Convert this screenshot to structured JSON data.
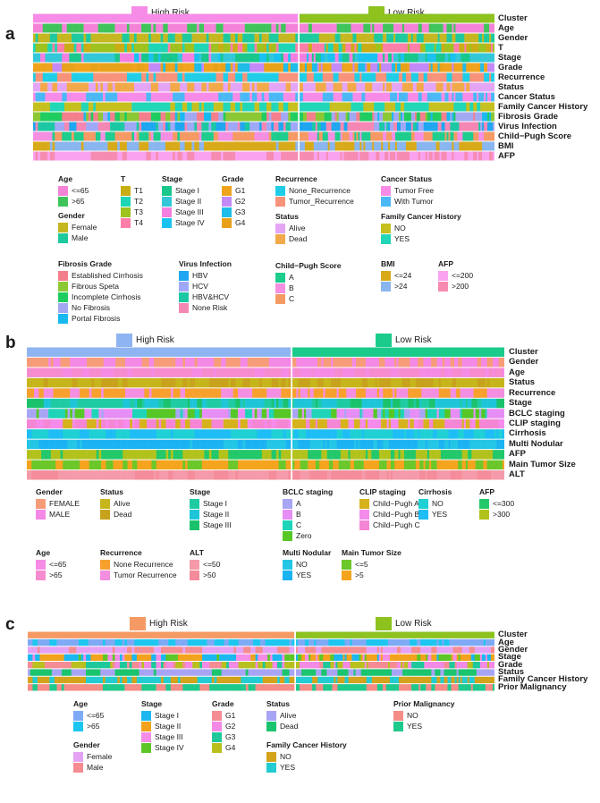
{
  "panels": [
    {
      "letter": "a",
      "headers": [
        {
          "label": "High Risk",
          "color": "#F78CE8"
        },
        {
          "label": "Low Risk",
          "color": "#8DC21F"
        }
      ],
      "tracks": [
        {
          "label": "Cluster",
          "palette": [
            "#F78CE8",
            "#8DC21F"
          ],
          "cluster": true
        },
        {
          "label": "Age",
          "palette": [
            "#F483D8",
            "#3FC45B"
          ]
        },
        {
          "label": "Gender",
          "palette": [
            "#C5B721",
            "#1FC99E"
          ]
        },
        {
          "label": "T",
          "palette": [
            "#C9AD14",
            "#1ED6B5",
            "#9EC21E",
            "#FF7FA8"
          ]
        },
        {
          "label": "Stage",
          "palette": [
            "#19C78C",
            "#33C7D9",
            "#F47FE0",
            "#19C2F0"
          ]
        },
        {
          "label": "Grade",
          "palette": [
            "#F0A41E",
            "#C38AF7",
            "#1EBCE8",
            "#E8A21A"
          ]
        },
        {
          "label": "Recurrence",
          "palette": [
            "#20CDE6",
            "#F7937A"
          ]
        },
        {
          "label": "Status",
          "palette": [
            "#E4A5F5",
            "#F2A94A"
          ]
        },
        {
          "label": "Cancer Status",
          "palette": [
            "#F78CE8",
            "#4BB8F5"
          ]
        },
        {
          "label": "Family Cancer History",
          "palette": [
            "#C6C01F",
            "#22D6B8"
          ]
        },
        {
          "label": "Fibrosis Grade",
          "palette": [
            "#F47F8C",
            "#8BC834",
            "#1FCC60",
            "#A2A9F2",
            "#17B9F0"
          ]
        },
        {
          "label": "Virus Infection",
          "palette": [
            "#1FA6F0",
            "#9FA8F7",
            "#1CC8A4",
            "#F587B4"
          ]
        },
        {
          "label": "Child−Pugh Score",
          "palette": [
            "#1ECD8E",
            "#F48FE2",
            "#F59A64"
          ]
        },
        {
          "label": "BMI",
          "palette": [
            "#D8AA1A",
            "#8AB6F0"
          ]
        },
        {
          "label": "AFP",
          "palette": [
            "#F9A3EF",
            "#F68CB2"
          ]
        }
      ],
      "legend": [
        {
          "title": "Age",
          "items": [
            {
              "label": "<=65",
              "color": "#F483D8"
            },
            {
              "label": ">65",
              "color": "#3FC45B"
            }
          ]
        },
        {
          "title": "Gender",
          "items": [
            {
              "label": "Female",
              "color": "#C5B721"
            },
            {
              "label": "Male",
              "color": "#1FC99E"
            }
          ]
        },
        {
          "title": "T",
          "items": [
            {
              "label": "T1",
              "color": "#C9AD14"
            },
            {
              "label": "T2",
              "color": "#1ED6B5"
            },
            {
              "label": "T3",
              "color": "#9EC21E"
            },
            {
              "label": "T4",
              "color": "#FF7FA8"
            }
          ]
        },
        {
          "title": "Stage",
          "items": [
            {
              "label": "Stage I",
              "color": "#19C78C"
            },
            {
              "label": "Stage II",
              "color": "#33C7D9"
            },
            {
              "label": "Stage III",
              "color": "#F47FE0"
            },
            {
              "label": "Stage IV",
              "color": "#19C2F0"
            }
          ]
        },
        {
          "title": "Grade",
          "items": [
            {
              "label": "G1",
              "color": "#F0A41E"
            },
            {
              "label": "G2",
              "color": "#C38AF7"
            },
            {
              "label": "G3",
              "color": "#1EBCE8"
            },
            {
              "label": "G4",
              "color": "#E8A21A"
            }
          ]
        },
        {
          "title": "Recurrence",
          "items": [
            {
              "label": "None_Recurrence",
              "color": "#20CDE6"
            },
            {
              "label": "Tumor_Recurrence",
              "color": "#F7937A"
            }
          ]
        },
        {
          "title": "Status",
          "items": [
            {
              "label": "Alive",
              "color": "#E4A5F5"
            },
            {
              "label": "Dead",
              "color": "#F2A94A"
            }
          ]
        },
        {
          "title": "Cancer Status",
          "items": [
            {
              "label": "Tumor Free",
              "color": "#F78CE8"
            },
            {
              "label": "With Tumor",
              "color": "#4BB8F5"
            }
          ]
        },
        {
          "title": "Family Cancer History",
          "items": [
            {
              "label": "NO",
              "color": "#C6C01F"
            },
            {
              "label": "YES",
              "color": "#22D6B8"
            }
          ]
        },
        {
          "title": "Fibrosis Grade",
          "items": [
            {
              "label": "Established Cirrhosis",
              "color": "#F47F8C"
            },
            {
              "label": "Fibrous Speta",
              "color": "#8BC834"
            },
            {
              "label": "Incomplete Cirrhosis",
              "color": "#1FCC60"
            },
            {
              "label": "No Fibrosis",
              "color": "#A2A9F2"
            },
            {
              "label": "Portal Fibrosis",
              "color": "#17B9F0"
            }
          ]
        },
        {
          "title": "Virus Infection",
          "items": [
            {
              "label": "HBV",
              "color": "#1FA6F0"
            },
            {
              "label": "HCV",
              "color": "#9FA8F7"
            },
            {
              "label": "HBV&HCV",
              "color": "#1CC8A4"
            },
            {
              "label": "None Risk",
              "color": "#F587B4"
            }
          ]
        },
        {
          "title": "Child−Pugh Score",
          "items": [
            {
              "label": "A",
              "color": "#1ECD8E"
            },
            {
              "label": "B",
              "color": "#F48FE2"
            },
            {
              "label": "C",
              "color": "#F59A64"
            }
          ]
        },
        {
          "title": "BMI",
          "items": [
            {
              "label": "<=24",
              "color": "#D8AA1A"
            },
            {
              "label": ">24",
              "color": "#8AB6F0"
            }
          ]
        },
        {
          "title": "AFP",
          "items": [
            {
              "label": "<=200",
              "color": "#F9A3EF"
            },
            {
              "label": ">200",
              "color": "#F68CB2"
            }
          ]
        }
      ]
    },
    {
      "letter": "b",
      "headers": [
        {
          "label": "High Risk",
          "color": "#8FB4F2"
        },
        {
          "label": "Low Risk",
          "color": "#1BCB8C"
        }
      ],
      "tracks": [
        {
          "label": "Cluster",
          "palette": [
            "#8FB4F2",
            "#1BCB8C"
          ],
          "cluster": true
        },
        {
          "label": "Gender",
          "palette": [
            "#F79C78",
            "#F489E6"
          ]
        },
        {
          "label": "Age",
          "palette": [
            "#F58BE5",
            "#F68CCF"
          ]
        },
        {
          "label": "Status",
          "palette": [
            "#C6B51B",
            "#C8A21C"
          ]
        },
        {
          "label": "Recurrence",
          "palette": [
            "#F7A02E",
            "#F38EE0"
          ]
        },
        {
          "label": "Stage",
          "palette": [
            "#1ECBA3",
            "#1EC5D9",
            "#1BC26C"
          ]
        },
        {
          "label": "BCLC staging",
          "palette": [
            "#A8A5F5",
            "#E68EF5",
            "#1ED4B8",
            "#56C726"
          ]
        },
        {
          "label": "CLIP staging",
          "palette": [
            "#D6B21C",
            "#F58BEB",
            "#F486D5"
          ]
        },
        {
          "label": "Cirrhosis",
          "palette": [
            "#1FD0D4",
            "#1EBDF5"
          ]
        },
        {
          "label": "Multi Nodular",
          "palette": [
            "#24C6E6",
            "#1CB3F2"
          ]
        },
        {
          "label": "AFP",
          "palette": [
            "#22C86A",
            "#B2C21C"
          ]
        },
        {
          "label": "Main Tumor Size",
          "palette": [
            "#6BC72A",
            "#F5A41E"
          ]
        },
        {
          "label": "ALT",
          "palette": [
            "#F59AA8",
            "#F58C9B"
          ]
        }
      ],
      "legend": [
        {
          "title": "Gender",
          "items": [
            {
              "label": "FEMALE",
              "color": "#F79C78"
            },
            {
              "label": "MALE",
              "color": "#F489E6"
            }
          ]
        },
        {
          "title": "Status",
          "items": [
            {
              "label": "Alive",
              "color": "#C6B51B"
            },
            {
              "label": "Dead",
              "color": "#C8A21C"
            }
          ]
        },
        {
          "title": "Stage",
          "items": [
            {
              "label": "Stage I",
              "color": "#1ECBA3"
            },
            {
              "label": "Stage II",
              "color": "#1EC5D9"
            },
            {
              "label": "Stage III",
              "color": "#1BC26C"
            }
          ]
        },
        {
          "title": "BCLC staging",
          "items": [
            {
              "label": "A",
              "color": "#A8A5F5"
            },
            {
              "label": "B",
              "color": "#E68EF5"
            },
            {
              "label": "C",
              "color": "#1ED4B8"
            },
            {
              "label": "Zero",
              "color": "#56C726"
            }
          ]
        },
        {
          "title": "CLIP staging",
          "items": [
            {
              "label": "Child−Pugh A",
              "color": "#D6B21C"
            },
            {
              "label": "Child−Pugh B",
              "color": "#F58BEB"
            },
            {
              "label": "Child−Pugh C",
              "color": "#F486D5"
            }
          ]
        },
        {
          "title": "Cirrhosis",
          "items": [
            {
              "label": "NO",
              "color": "#1FD0D4"
            },
            {
              "label": "YES",
              "color": "#1EBDF5"
            }
          ]
        },
        {
          "title": "AFP",
          "items": [
            {
              "label": "<=300",
              "color": "#22C86A"
            },
            {
              "label": ">300",
              "color": "#B2C21C"
            }
          ]
        },
        {
          "title": "Age",
          "items": [
            {
              "label": "<=65",
              "color": "#F58BE5"
            },
            {
              "label": ">65",
              "color": "#F68CCF"
            }
          ]
        },
        {
          "title": "Recurrence",
          "items": [
            {
              "label": "None Recurrence",
              "color": "#F7A02E"
            },
            {
              "label": "Tumor Recurrence",
              "color": "#F38EE0"
            }
          ]
        },
        {
          "title": "ALT",
          "items": [
            {
              "label": "<=50",
              "color": "#F59AA8"
            },
            {
              "label": ">50",
              "color": "#F58C9B"
            }
          ]
        },
        {
          "title": "Multi Nodular",
          "items": [
            {
              "label": "NO",
              "color": "#24C6E6"
            },
            {
              "label": "YES",
              "color": "#1CB3F2"
            }
          ]
        },
        {
          "title": "Main Tumor Size",
          "items": [
            {
              "label": "<=5",
              "color": "#6BC72A"
            },
            {
              "label": ">5",
              "color": "#F5A41E"
            }
          ]
        }
      ]
    },
    {
      "letter": "c",
      "headers": [
        {
          "label": "High Risk",
          "color": "#F59A64"
        },
        {
          "label": "Low Risk",
          "color": "#8DC21F"
        }
      ],
      "tracks": [
        {
          "label": "Cluster",
          "palette": [
            "#F59A64",
            "#8DC21F"
          ],
          "cluster": true
        },
        {
          "label": "Age",
          "palette": [
            "#7EA9F5",
            "#1DC6F0"
          ]
        },
        {
          "label": "Gender",
          "palette": [
            "#E5A2F5",
            "#F58C92"
          ]
        },
        {
          "label": "Stage",
          "palette": [
            "#1CB7F0",
            "#F2A21C",
            "#F58CE5",
            "#5DC626"
          ]
        },
        {
          "label": "Grade",
          "palette": [
            "#F58C94",
            "#F38AE5",
            "#1EC89A",
            "#B9C01E"
          ]
        },
        {
          "label": "Status",
          "palette": [
            "#A8A4F5",
            "#1BC46E"
          ]
        },
        {
          "label": "Family Cancer History",
          "palette": [
            "#D4A31C",
            "#22CCD2"
          ]
        },
        {
          "label": "Prior Malignancy",
          "palette": [
            "#F58C86",
            "#1EC98C"
          ]
        }
      ],
      "legend": [
        {
          "title": "Age",
          "items": [
            {
              "label": "<=65",
              "color": "#7EA9F5"
            },
            {
              "label": ">65",
              "color": "#1DC6F0"
            }
          ]
        },
        {
          "title": "Gender",
          "items": [
            {
              "label": "Female",
              "color": "#E5A2F5"
            },
            {
              "label": "Male",
              "color": "#F58C92"
            }
          ]
        },
        {
          "title": "Stage",
          "items": [
            {
              "label": "Stage I",
              "color": "#1CB7F0"
            },
            {
              "label": "Stage II",
              "color": "#F2A21C"
            },
            {
              "label": "Stage III",
              "color": "#F58CE5"
            },
            {
              "label": "Stage IV",
              "color": "#5DC626"
            }
          ]
        },
        {
          "title": "Grade",
          "items": [
            {
              "label": "G1",
              "color": "#F58C94"
            },
            {
              "label": "G2",
              "color": "#F38AE5"
            },
            {
              "label": "G3",
              "color": "#1EC89A"
            },
            {
              "label": "G4",
              "color": "#B9C01E"
            }
          ]
        },
        {
          "title": "Status",
          "items": [
            {
              "label": "Alive",
              "color": "#A8A4F5"
            },
            {
              "label": "Dead",
              "color": "#1BC46E"
            }
          ]
        },
        {
          "title": "Family Cancer History",
          "items": [
            {
              "label": "NO",
              "color": "#D4A31C"
            },
            {
              "label": "YES",
              "color": "#22CCD2"
            }
          ]
        },
        {
          "title": "Prior Malignancy",
          "items": [
            {
              "label": "NO",
              "color": "#F58C86"
            },
            {
              "label": "YES",
              "color": "#1EC98C"
            }
          ]
        }
      ]
    }
  ]
}
